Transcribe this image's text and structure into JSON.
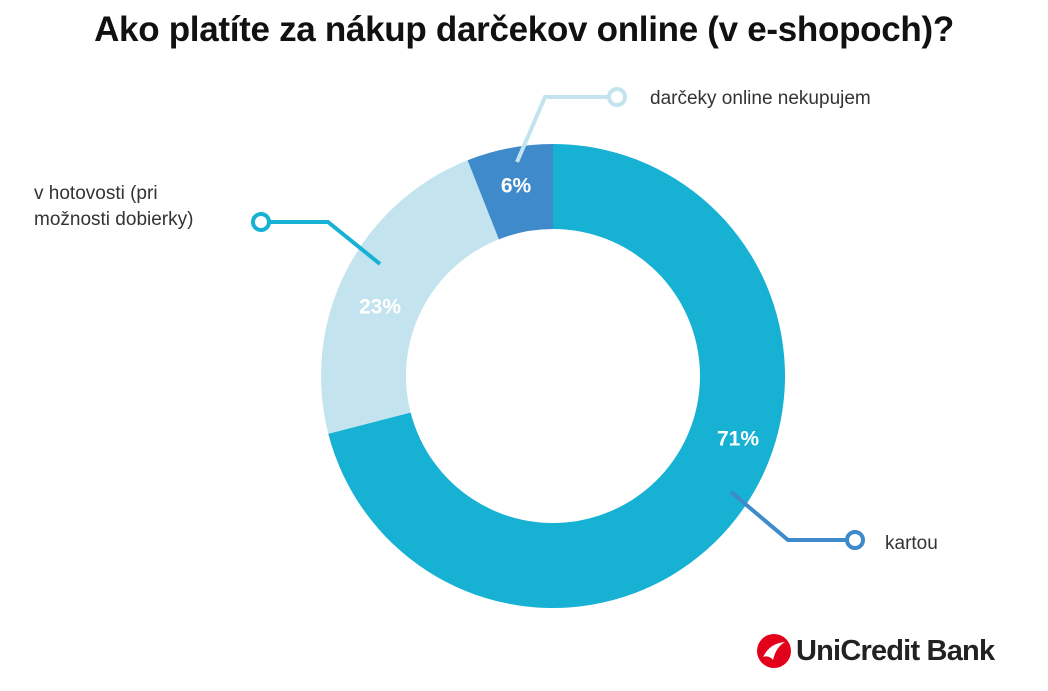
{
  "title": "Ako platíte za nákup darčekov online (v e-shopoch)?",
  "brand": "UniCredit Bank",
  "chart_data": {
    "type": "pie",
    "donut": true,
    "title": "Ako platíte za nákup darčekov online (v e-shopoch)?",
    "slices": [
      {
        "label": "kartou",
        "value": 71,
        "value_label": "71%",
        "color": "#16B1D3"
      },
      {
        "label": "v hotovosti (pri možnosti dobierky)",
        "label_lines": [
          "v hotovosti (pri",
          "možnosti dobierky)"
        ],
        "value": 23,
        "value_label": "23%",
        "color": "#C3E4EE"
      },
      {
        "label": "darčeky online nekupujem",
        "value": 6,
        "value_label": "6%",
        "color": "#3F8ACB"
      }
    ],
    "start": "top",
    "direction": "clockwise"
  },
  "colors": {
    "title": "#111111",
    "brand_red": "#E2001A"
  }
}
